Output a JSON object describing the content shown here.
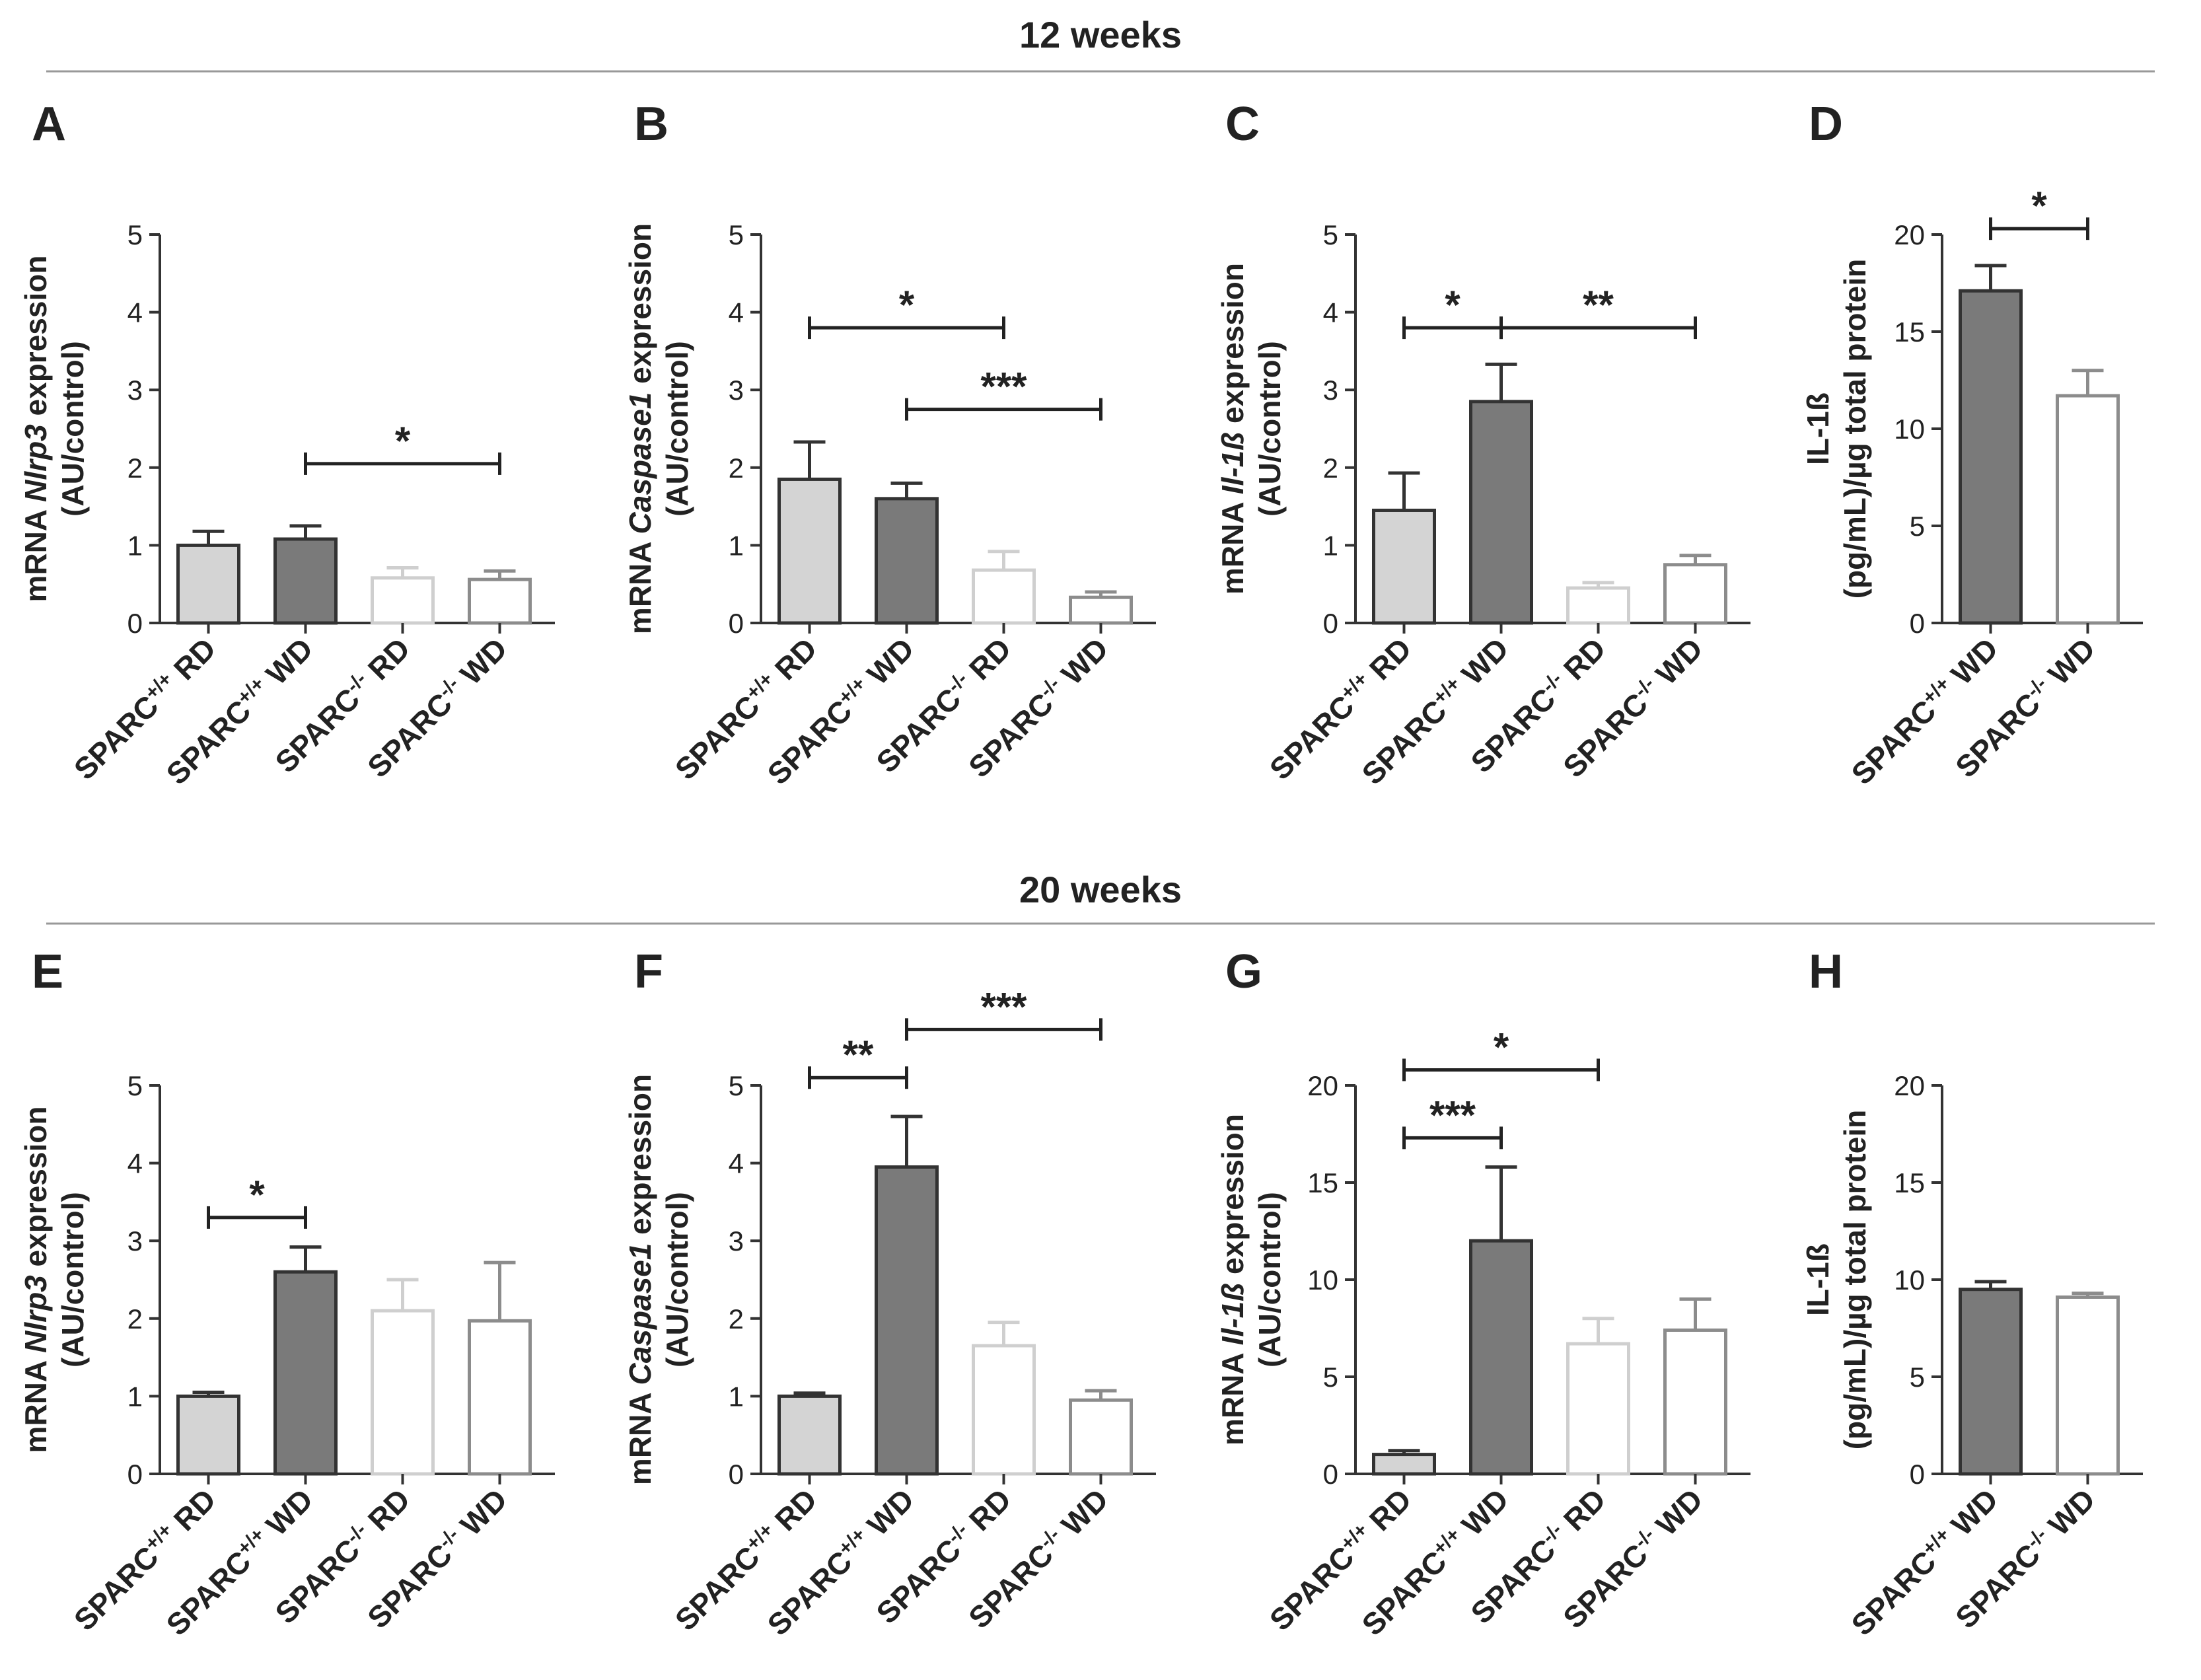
{
  "sections": [
    {
      "title": "12 weeks"
    },
    {
      "title": "20 weeks"
    }
  ],
  "colors": {
    "sparc_wt_rd": "#d4d4d4",
    "sparc_wt_wd": "#7a7a7a",
    "sparc_ko_rd": "#ffffff",
    "sparc_ko_wd": "#ffffff",
    "edge_dark": "#333333",
    "edge_light": "#cfcfcf",
    "edge_mid": "#8c8c8c"
  },
  "chart_data": [
    {
      "panel": "A",
      "type": "bar",
      "section": "12 weeks",
      "ylabel_parts": [
        {
          "t": "mRNA ",
          "i": false
        },
        {
          "t": "Nlrp3",
          "i": true
        },
        {
          "t": " expression",
          "i": false
        }
      ],
      "ylabel2": "(AU/control)",
      "ylim": [
        0,
        5
      ],
      "yticks": [
        0,
        1,
        2,
        3,
        4,
        5
      ],
      "categories": [
        {
          "label": "SPARC",
          "sup": "+/+",
          "suffix": " RD"
        },
        {
          "label": "SPARC",
          "sup": "+/+",
          "suffix": " WD"
        },
        {
          "label": "SPARC",
          "sup": "-/-",
          "suffix": " RD"
        },
        {
          "label": "SPARC",
          "sup": "-/-",
          "suffix": " WD"
        }
      ],
      "values": [
        1.0,
        1.08,
        0.58,
        0.56
      ],
      "errors": [
        0.18,
        0.17,
        0.13,
        0.11
      ],
      "significance": [
        {
          "from": 1,
          "to": 3,
          "y": 2.05,
          "label": "*"
        }
      ]
    },
    {
      "panel": "B",
      "type": "bar",
      "section": "12 weeks",
      "ylabel_parts": [
        {
          "t": "mRNA ",
          "i": false
        },
        {
          "t": "Caspase1",
          "i": true
        },
        {
          "t": " expression",
          "i": false
        }
      ],
      "ylabel2": "(AU/control)",
      "ylim": [
        0,
        5
      ],
      "yticks": [
        0,
        1,
        2,
        3,
        4,
        5
      ],
      "categories": [
        {
          "label": "SPARC",
          "sup": "+/+",
          "suffix": " RD"
        },
        {
          "label": "SPARC",
          "sup": "+/+",
          "suffix": " WD"
        },
        {
          "label": "SPARC",
          "sup": "-/-",
          "suffix": " RD"
        },
        {
          "label": "SPARC",
          "sup": "-/-",
          "suffix": " WD"
        }
      ],
      "values": [
        1.85,
        1.6,
        0.68,
        0.33
      ],
      "errors": [
        0.48,
        0.2,
        0.24,
        0.07
      ],
      "significance": [
        {
          "from": 0,
          "to": 2,
          "y": 3.8,
          "label": "*"
        },
        {
          "from": 1,
          "to": 3,
          "y": 2.75,
          "label": "***"
        }
      ]
    },
    {
      "panel": "C",
      "type": "bar",
      "section": "12 weeks",
      "ylabel_parts": [
        {
          "t": "mRNA ",
          "i": false
        },
        {
          "t": "Il-1ß",
          "i": true
        },
        {
          "t": " expression",
          "i": false
        }
      ],
      "ylabel2": "(AU/control)",
      "ylim": [
        0,
        5
      ],
      "yticks": [
        0,
        1,
        2,
        3,
        4,
        5
      ],
      "categories": [
        {
          "label": "SPARC",
          "sup": "+/+",
          "suffix": " RD"
        },
        {
          "label": "SPARC",
          "sup": "+/+",
          "suffix": " WD"
        },
        {
          "label": "SPARC",
          "sup": "-/-",
          "suffix": " RD"
        },
        {
          "label": "SPARC",
          "sup": "-/-",
          "suffix": " WD"
        }
      ],
      "values": [
        1.45,
        2.85,
        0.45,
        0.75
      ],
      "errors": [
        0.48,
        0.48,
        0.07,
        0.12
      ],
      "significance": [
        {
          "from": 0,
          "to": 1,
          "y": 3.8,
          "label": "*"
        },
        {
          "from": 1,
          "to": 3,
          "y": 3.8,
          "label": "**"
        }
      ]
    },
    {
      "panel": "D",
      "type": "bar",
      "section": "12 weeks",
      "ylabel_parts": [
        {
          "t": "IL-1ß",
          "i": false
        }
      ],
      "ylabel2": "(pg/mL)/µg total protein",
      "ylim": [
        0,
        20
      ],
      "yticks": [
        0,
        5,
        10,
        15,
        20
      ],
      "categories": [
        {
          "label": "SPARC",
          "sup": "+/+",
          "suffix": " WD"
        },
        {
          "label": "SPARC",
          "sup": "-/-",
          "suffix": " WD"
        }
      ],
      "values": [
        17.1,
        11.7
      ],
      "errors": [
        1.3,
        1.3
      ],
      "significance": [
        {
          "from": 0,
          "to": 1,
          "y": 20.3,
          "label": "*"
        }
      ]
    },
    {
      "panel": "E",
      "type": "bar",
      "section": "20 weeks",
      "ylabel_parts": [
        {
          "t": "mRNA ",
          "i": false
        },
        {
          "t": "Nlrp3",
          "i": true
        },
        {
          "t": " expression",
          "i": false
        }
      ],
      "ylabel2": "(AU/control)",
      "ylim": [
        0,
        5
      ],
      "yticks": [
        0,
        1,
        2,
        3,
        4,
        5
      ],
      "categories": [
        {
          "label": "SPARC",
          "sup": "+/+",
          "suffix": " RD"
        },
        {
          "label": "SPARC",
          "sup": "+/+",
          "suffix": " WD"
        },
        {
          "label": "SPARC",
          "sup": "-/-",
          "suffix": " RD"
        },
        {
          "label": "SPARC",
          "sup": "-/-",
          "suffix": " WD"
        }
      ],
      "values": [
        1.0,
        2.6,
        2.1,
        1.97
      ],
      "errors": [
        0.05,
        0.32,
        0.4,
        0.75
      ],
      "significance": [
        {
          "from": 0,
          "to": 1,
          "y": 3.3,
          "label": "*"
        }
      ]
    },
    {
      "panel": "F",
      "type": "bar",
      "section": "20 weeks",
      "ylabel_parts": [
        {
          "t": "mRNA ",
          "i": false
        },
        {
          "t": "Caspase1",
          "i": true
        },
        {
          "t": " expression",
          "i": false
        }
      ],
      "ylabel2": "(AU/control)",
      "ylim": [
        0,
        5
      ],
      "yticks": [
        0,
        1,
        2,
        3,
        4,
        5
      ],
      "categories": [
        {
          "label": "SPARC",
          "sup": "+/+",
          "suffix": " RD"
        },
        {
          "label": "SPARC",
          "sup": "+/+",
          "suffix": " WD"
        },
        {
          "label": "SPARC",
          "sup": "-/-",
          "suffix": " RD"
        },
        {
          "label": "SPARC",
          "sup": "-/-",
          "suffix": " WD"
        }
      ],
      "values": [
        1.0,
        3.95,
        1.65,
        0.95
      ],
      "errors": [
        0.04,
        0.65,
        0.3,
        0.12
      ],
      "significance": [
        {
          "from": 0,
          "to": 1,
          "y": 5.1,
          "label": "**"
        },
        {
          "from": 1,
          "to": 3,
          "y": 5.72,
          "label": "***"
        }
      ]
    },
    {
      "panel": "G",
      "type": "bar",
      "section": "20 weeks",
      "ylabel_parts": [
        {
          "t": "mRNA  ",
          "i": false
        },
        {
          "t": "Il-1ß",
          "i": true
        },
        {
          "t": " expression",
          "i": false
        }
      ],
      "ylabel2": "(AU/control)",
      "ylim": [
        0,
        20
      ],
      "yticks": [
        0,
        5,
        10,
        15,
        20
      ],
      "categories": [
        {
          "label": "SPARC",
          "sup": "+/+",
          "suffix": " RD"
        },
        {
          "label": "SPARC",
          "sup": "+/+",
          "suffix": " WD"
        },
        {
          "label": "SPARC",
          "sup": "-/-",
          "suffix": " RD"
        },
        {
          "label": "SPARC",
          "sup": "-/-",
          "suffix": " WD"
        }
      ],
      "values": [
        1.0,
        12.0,
        6.7,
        7.4
      ],
      "errors": [
        0.2,
        3.8,
        1.3,
        1.6
      ],
      "significance": [
        {
          "from": 0,
          "to": 1,
          "y": 17.3,
          "label": "***"
        },
        {
          "from": 0,
          "to": 2,
          "y": 20.8,
          "label": "*"
        }
      ]
    },
    {
      "panel": "H",
      "type": "bar",
      "section": "20 weeks",
      "ylabel_parts": [
        {
          "t": "IL-1ß",
          "i": false
        }
      ],
      "ylabel2": "(pg/mL)/µg total protein",
      "ylim": [
        0,
        20
      ],
      "yticks": [
        0,
        5,
        10,
        15,
        20
      ],
      "categories": [
        {
          "label": "SPARC",
          "sup": "+/+",
          "suffix": " WD"
        },
        {
          "label": "SPARC",
          "sup": "-/-",
          "suffix": " WD"
        }
      ],
      "values": [
        9.5,
        9.1
      ],
      "errors": [
        0.4,
        0.2
      ],
      "significance": []
    }
  ]
}
